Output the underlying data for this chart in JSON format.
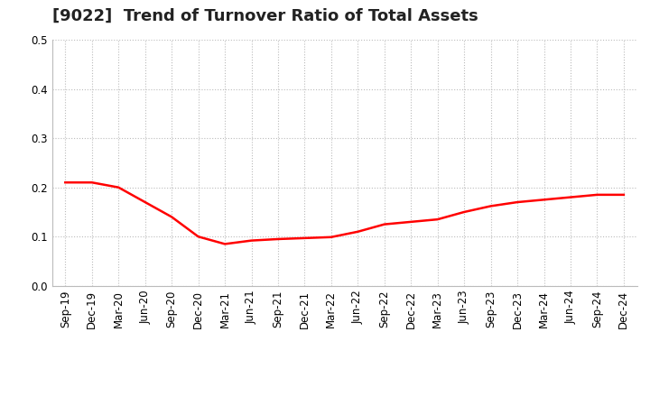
{
  "title": "[9022]  Trend of Turnover Ratio of Total Assets",
  "x_labels": [
    "Sep-19",
    "Dec-19",
    "Mar-20",
    "Jun-20",
    "Sep-20",
    "Dec-20",
    "Mar-21",
    "Jun-21",
    "Sep-21",
    "Dec-21",
    "Mar-22",
    "Jun-22",
    "Sep-22",
    "Dec-22",
    "Mar-23",
    "Jun-23",
    "Sep-23",
    "Dec-23",
    "Mar-24",
    "Jun-24",
    "Sep-24",
    "Dec-24"
  ],
  "y_values": [
    0.21,
    0.21,
    0.2,
    0.17,
    0.14,
    0.1,
    0.085,
    0.092,
    0.095,
    0.097,
    0.099,
    0.11,
    0.125,
    0.13,
    0.135,
    0.15,
    0.162,
    0.17,
    0.175,
    0.18,
    0.185,
    0.185
  ],
  "line_color": "#FF0000",
  "line_width": 1.8,
  "ylim": [
    0.0,
    0.5
  ],
  "yticks": [
    0.0,
    0.1,
    0.2,
    0.3,
    0.4,
    0.5
  ],
  "background_color": "#FFFFFF",
  "grid_color": "#BBBBBB",
  "title_fontsize": 13,
  "tick_fontsize": 8.5
}
